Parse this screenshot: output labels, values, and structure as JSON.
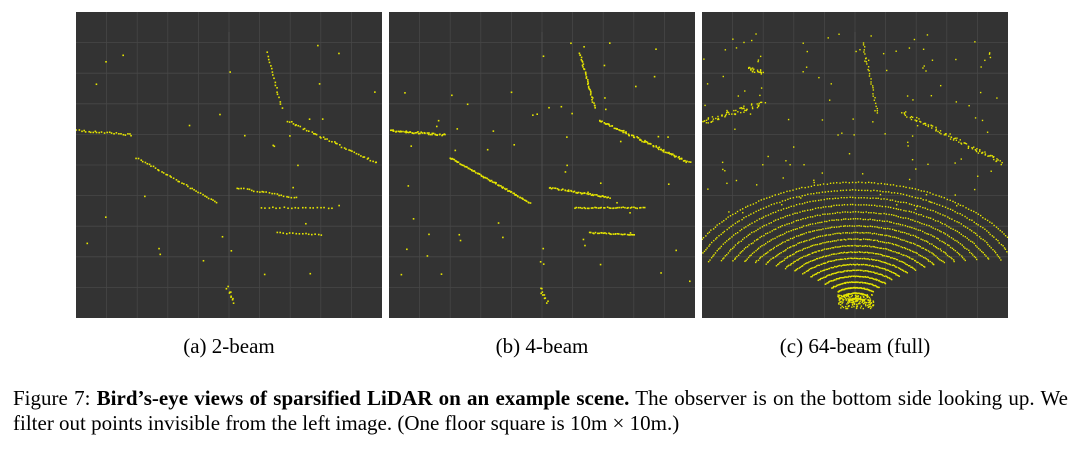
{
  "figure": {
    "panels": [
      {
        "id": "a",
        "label": "(a) 2-beam"
      },
      {
        "id": "b",
        "label": "(b) 4-beam"
      },
      {
        "id": "c",
        "label": "(c) 64-beam (full)"
      }
    ],
    "caption": {
      "prefix": "Figure 7: ",
      "bold": "Bird’s-eye views of sparsified LiDAR on an example scene.",
      "rest": " The observer is on the bottom side looking up. We filter out points invisible from the left image. (One floor square is 10m × 10m.)"
    }
  },
  "colors": {
    "background": "#333333",
    "grid": "#474747",
    "points": "#e6e600"
  }
}
